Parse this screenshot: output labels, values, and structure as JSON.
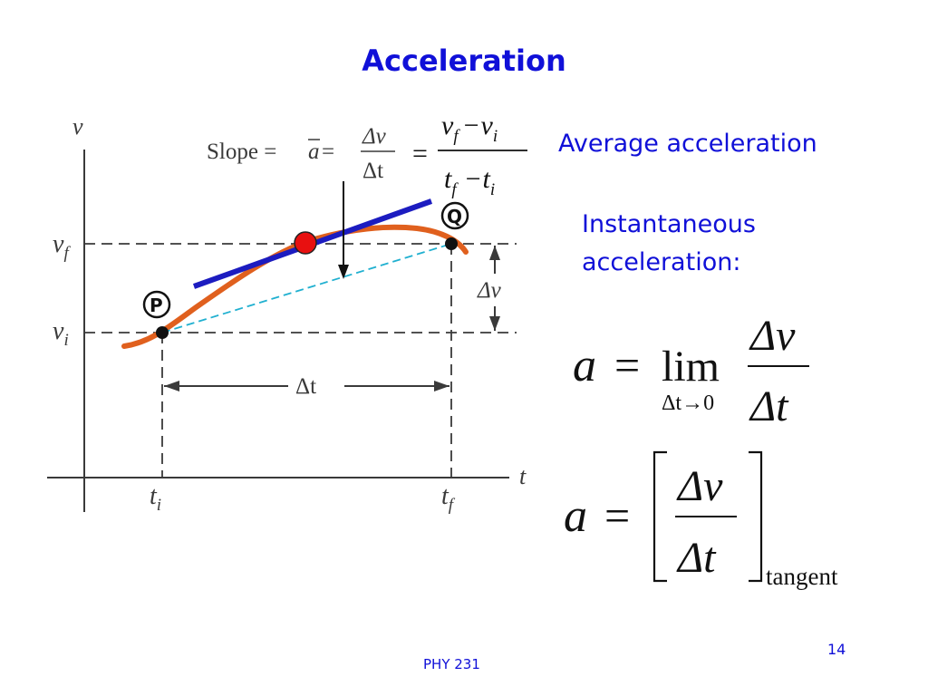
{
  "title": "Acceleration",
  "labels": {
    "average_acceleration": "Average acceleration",
    "instantaneous_line1": "Instantaneous",
    "instantaneous_line2": "acceleration:",
    "footer": "PHY 231",
    "page_number": "14"
  },
  "graph": {
    "v_axis": "v",
    "t_axis": "t",
    "v_f": "v",
    "v_f_sub": "f",
    "v_i": "v",
    "v_i_sub": "i",
    "t_i": "t",
    "t_i_sub": "i",
    "t_f": "t",
    "t_f_sub": "f",
    "point_p": "P",
    "point_q": "Q",
    "delta_v": "Δv",
    "delta_t": "Δt",
    "slope_prefix": "Slope = ",
    "slope_abar": "a",
    "slope_eq": " = ",
    "slope_num": "Δv",
    "slope_den": "Δt",
    "colors": {
      "curve": "#e0601e",
      "tangent": "#1c1cc0",
      "secant": "#20b0d0",
      "dot": "#e81010",
      "axis": "#3a3a3a"
    }
  },
  "formulas": {
    "avg_eq": "=",
    "avg_num_v": "v",
    "avg_num_vsub": "f",
    "avg_num_minus": "−",
    "avg_num_v2": "v",
    "avg_num_v2sub": "i",
    "avg_den_t": "t",
    "avg_den_tsub": "f",
    "avg_den_minus": "−",
    "avg_den_t2": "t",
    "avg_den_t2sub": "i",
    "lim_a": "a",
    "lim_eq": "=",
    "lim_word": "lim",
    "lim_under": "Δt→0",
    "lim_num": "Δv",
    "lim_den": "Δt",
    "tan_a": "a",
    "tan_eq": "=",
    "tan_num": "Δv",
    "tan_den": "Δt",
    "tan_sub": "tangent"
  }
}
